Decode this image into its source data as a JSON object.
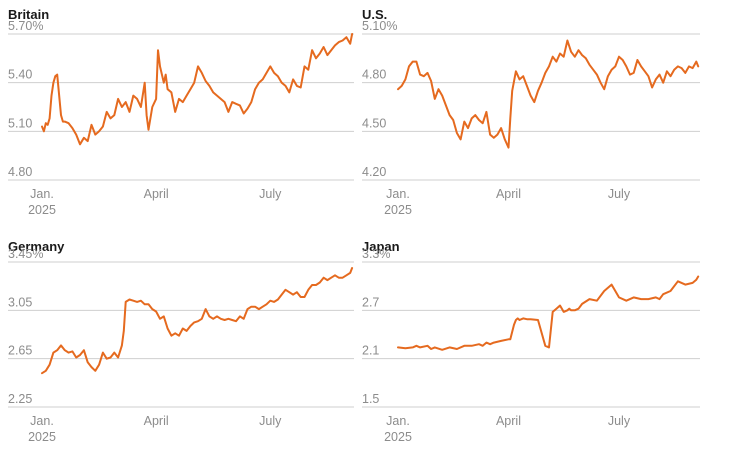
{
  "colors": {
    "line": "#e56a1f",
    "grid": "#cfcfcf",
    "tick": "#8c8c8c",
    "title": "#1a1a1a"
  },
  "chart_data": [
    {
      "type": "line",
      "title": "Britain",
      "yticks": [
        "5.70%",
        "5.40",
        "5.10",
        "4.80"
      ],
      "ytick_values": [
        5.7,
        5.4,
        5.1,
        4.8
      ],
      "ylim": [
        4.8,
        5.7
      ],
      "xticks": [
        {
          "x": 0,
          "label": "Jan.",
          "sublabel": "2025"
        },
        {
          "x": 3,
          "label": "April"
        },
        {
          "x": 6,
          "label": "July"
        }
      ],
      "xlim": [
        0,
        8.2
      ],
      "grid": true,
      "series": [
        {
          "x": [
            0,
            0.05,
            0.1,
            0.15,
            0.2,
            0.25,
            0.3,
            0.35,
            0.4,
            0.5,
            0.55,
            0.6,
            0.7,
            0.8,
            0.9,
            1.0,
            1.1,
            1.2,
            1.3,
            1.4,
            1.5,
            1.6,
            1.7,
            1.8,
            1.9,
            2.0,
            2.1,
            2.2,
            2.3,
            2.4,
            2.5,
            2.6,
            2.7,
            2.75,
            2.8,
            2.9,
            3.0,
            3.05,
            3.1,
            3.2,
            3.25,
            3.3,
            3.4,
            3.5,
            3.6,
            3.7,
            3.8,
            3.9,
            4.0,
            4.1,
            4.2,
            4.3,
            4.4,
            4.5,
            4.6,
            4.7,
            4.8,
            4.9,
            5.0,
            5.1,
            5.2,
            5.3,
            5.4,
            5.5,
            5.6,
            5.7,
            5.8,
            5.9,
            6.0,
            6.1,
            6.2,
            6.3,
            6.4,
            6.5,
            6.6,
            6.7,
            6.8,
            6.9,
            7.0,
            7.1,
            7.2,
            7.3,
            7.4,
            7.5,
            7.6,
            7.7,
            7.8,
            7.9,
            8.0,
            8.1,
            8.15
          ],
          "y": [
            5.13,
            5.1,
            5.15,
            5.14,
            5.18,
            5.32,
            5.4,
            5.44,
            5.45,
            5.2,
            5.16,
            5.16,
            5.15,
            5.12,
            5.08,
            5.02,
            5.06,
            5.04,
            5.14,
            5.08,
            5.1,
            5.13,
            5.22,
            5.18,
            5.2,
            5.3,
            5.25,
            5.28,
            5.22,
            5.32,
            5.3,
            5.25,
            5.4,
            5.2,
            5.11,
            5.25,
            5.3,
            5.6,
            5.5,
            5.4,
            5.45,
            5.36,
            5.34,
            5.22,
            5.3,
            5.28,
            5.32,
            5.36,
            5.4,
            5.5,
            5.46,
            5.41,
            5.38,
            5.34,
            5.32,
            5.3,
            5.28,
            5.22,
            5.28,
            5.27,
            5.26,
            5.21,
            5.24,
            5.28,
            5.36,
            5.4,
            5.42,
            5.46,
            5.5,
            5.46,
            5.44,
            5.4,
            5.38,
            5.34,
            5.42,
            5.38,
            5.37,
            5.5,
            5.48,
            5.6,
            5.55,
            5.58,
            5.62,
            5.57,
            5.6,
            5.63,
            5.65,
            5.66,
            5.68,
            5.64,
            5.7
          ]
        }
      ]
    },
    {
      "type": "line",
      "title": "U.S.",
      "yticks": [
        "5.10%",
        "4.80",
        "4.50",
        "4.20"
      ],
      "ytick_values": [
        5.1,
        4.8,
        4.5,
        4.2
      ],
      "ylim": [
        4.2,
        5.1
      ],
      "xticks": [
        {
          "x": 0,
          "label": "Jan.",
          "sublabel": "2025"
        },
        {
          "x": 3,
          "label": "April"
        },
        {
          "x": 6,
          "label": "July"
        }
      ],
      "xlim": [
        0,
        8.2
      ],
      "grid": true,
      "series": [
        {
          "x": [
            0,
            0.1,
            0.2,
            0.3,
            0.4,
            0.5,
            0.6,
            0.7,
            0.8,
            0.9,
            1.0,
            1.1,
            1.2,
            1.3,
            1.4,
            1.5,
            1.6,
            1.7,
            1.8,
            1.9,
            2.0,
            2.1,
            2.2,
            2.3,
            2.4,
            2.5,
            2.6,
            2.7,
            2.8,
            2.9,
            3.0,
            3.05,
            3.1,
            3.2,
            3.3,
            3.4,
            3.5,
            3.6,
            3.7,
            3.8,
            3.9,
            4.0,
            4.1,
            4.2,
            4.3,
            4.4,
            4.5,
            4.6,
            4.7,
            4.8,
            4.9,
            5.0,
            5.1,
            5.2,
            5.3,
            5.4,
            5.5,
            5.6,
            5.7,
            5.8,
            5.9,
            6.0,
            6.1,
            6.2,
            6.3,
            6.4,
            6.5,
            6.6,
            6.7,
            6.8,
            6.9,
            7.0,
            7.1,
            7.2,
            7.3,
            7.4,
            7.5,
            7.6,
            7.7,
            7.8,
            7.9,
            8.0,
            8.1,
            8.15
          ],
          "y": [
            4.76,
            4.78,
            4.82,
            4.9,
            4.93,
            4.93,
            4.85,
            4.84,
            4.86,
            4.81,
            4.7,
            4.76,
            4.72,
            4.66,
            4.6,
            4.57,
            4.49,
            4.45,
            4.56,
            4.52,
            4.58,
            4.6,
            4.57,
            4.55,
            4.62,
            4.48,
            4.46,
            4.48,
            4.52,
            4.45,
            4.4,
            4.58,
            4.75,
            4.87,
            4.82,
            4.84,
            4.78,
            4.72,
            4.68,
            4.75,
            4.8,
            4.86,
            4.9,
            4.96,
            4.93,
            4.98,
            4.96,
            5.06,
            4.99,
            4.96,
            5.0,
            4.97,
            4.95,
            4.91,
            4.88,
            4.85,
            4.8,
            4.76,
            4.84,
            4.88,
            4.9,
            4.96,
            4.94,
            4.9,
            4.85,
            4.86,
            4.94,
            4.9,
            4.87,
            4.84,
            4.77,
            4.82,
            4.85,
            4.8,
            4.87,
            4.84,
            4.88,
            4.9,
            4.89,
            4.86,
            4.9,
            4.89,
            4.93,
            4.9
          ]
        }
      ]
    },
    {
      "type": "line",
      "title": "Germany",
      "yticks": [
        "3.45%",
        "3.05",
        "2.65",
        "2.25"
      ],
      "ytick_values": [
        3.45,
        3.05,
        2.65,
        2.25
      ],
      "ylim": [
        2.25,
        3.45
      ],
      "xticks": [
        {
          "x": 0,
          "label": "Jan.",
          "sublabel": "2025"
        },
        {
          "x": 3,
          "label": "April"
        },
        {
          "x": 6,
          "label": "July"
        }
      ],
      "xlim": [
        0,
        8.2
      ],
      "grid": true,
      "series": [
        {
          "x": [
            0,
            0.1,
            0.2,
            0.3,
            0.4,
            0.5,
            0.6,
            0.7,
            0.8,
            0.9,
            1.0,
            1.1,
            1.2,
            1.3,
            1.4,
            1.5,
            1.6,
            1.7,
            1.8,
            1.9,
            2.0,
            2.1,
            2.15,
            2.2,
            2.3,
            2.4,
            2.5,
            2.6,
            2.7,
            2.8,
            2.9,
            3.0,
            3.1,
            3.2,
            3.3,
            3.4,
            3.5,
            3.6,
            3.7,
            3.8,
            3.9,
            4.0,
            4.1,
            4.2,
            4.3,
            4.4,
            4.5,
            4.6,
            4.7,
            4.8,
            4.9,
            5.0,
            5.1,
            5.2,
            5.3,
            5.4,
            5.5,
            5.6,
            5.7,
            5.8,
            5.9,
            6.0,
            6.1,
            6.2,
            6.3,
            6.4,
            6.5,
            6.6,
            6.7,
            6.8,
            6.9,
            7.0,
            7.1,
            7.2,
            7.3,
            7.4,
            7.5,
            7.6,
            7.7,
            7.8,
            7.9,
            8.0,
            8.1,
            8.15
          ],
          "y": [
            2.53,
            2.55,
            2.6,
            2.7,
            2.72,
            2.76,
            2.72,
            2.7,
            2.71,
            2.66,
            2.68,
            2.72,
            2.62,
            2.58,
            2.55,
            2.6,
            2.7,
            2.65,
            2.66,
            2.7,
            2.66,
            2.76,
            2.88,
            3.12,
            3.14,
            3.13,
            3.12,
            3.13,
            3.1,
            3.1,
            3.06,
            3.04,
            2.98,
            3.0,
            2.9,
            2.84,
            2.86,
            2.84,
            2.9,
            2.88,
            2.92,
            2.95,
            2.96,
            2.98,
            3.06,
            3.0,
            2.98,
            3.0,
            2.98,
            2.97,
            2.98,
            2.97,
            2.96,
            3.0,
            2.98,
            3.06,
            3.08,
            3.08,
            3.06,
            3.08,
            3.1,
            3.13,
            3.12,
            3.14,
            3.18,
            3.22,
            3.2,
            3.18,
            3.2,
            3.16,
            3.16,
            3.22,
            3.26,
            3.26,
            3.28,
            3.32,
            3.3,
            3.32,
            3.34,
            3.32,
            3.32,
            3.34,
            3.36,
            3.4
          ]
        }
      ]
    },
    {
      "type": "line",
      "title": "Japan",
      "yticks": [
        "3.3%",
        "2.7",
        "2.1",
        "1.5"
      ],
      "ytick_values": [
        3.3,
        2.7,
        2.1,
        1.5
      ],
      "ylim": [
        1.5,
        3.3
      ],
      "xticks": [
        {
          "x": 0,
          "label": "Jan.",
          "sublabel": "2025"
        },
        {
          "x": 3,
          "label": "April"
        },
        {
          "x": 6,
          "label": "July"
        }
      ],
      "xlim": [
        0,
        8.2
      ],
      "grid": true,
      "series": [
        {
          "x": [
            0,
            0.2,
            0.4,
            0.5,
            0.6,
            0.8,
            0.9,
            1.0,
            1.2,
            1.4,
            1.6,
            1.8,
            2.0,
            2.2,
            2.3,
            2.4,
            2.5,
            2.6,
            2.8,
            3.0,
            3.05,
            3.15,
            3.2,
            3.25,
            3.3,
            3.4,
            3.5,
            3.6,
            3.8,
            4.0,
            4.1,
            4.2,
            4.3,
            4.4,
            4.5,
            4.6,
            4.65,
            4.7,
            4.8,
            4.9,
            5.0,
            5.2,
            5.4,
            5.6,
            5.8,
            6.0,
            6.2,
            6.4,
            6.6,
            6.8,
            7.0,
            7.1,
            7.2,
            7.4,
            7.6,
            7.8,
            8.0,
            8.1,
            8.15
          ],
          "y": [
            2.24,
            2.23,
            2.24,
            2.26,
            2.24,
            2.26,
            2.22,
            2.24,
            2.21,
            2.24,
            2.22,
            2.26,
            2.26,
            2.28,
            2.26,
            2.3,
            2.28,
            2.3,
            2.32,
            2.34,
            2.34,
            2.52,
            2.58,
            2.6,
            2.58,
            2.6,
            2.59,
            2.59,
            2.58,
            2.26,
            2.24,
            2.68,
            2.72,
            2.76,
            2.68,
            2.7,
            2.72,
            2.7,
            2.7,
            2.72,
            2.78,
            2.84,
            2.82,
            2.94,
            3.02,
            2.86,
            2.82,
            2.86,
            2.84,
            2.84,
            2.86,
            2.84,
            2.9,
            2.94,
            3.06,
            3.02,
            3.04,
            3.08,
            3.12
          ]
        }
      ]
    }
  ]
}
